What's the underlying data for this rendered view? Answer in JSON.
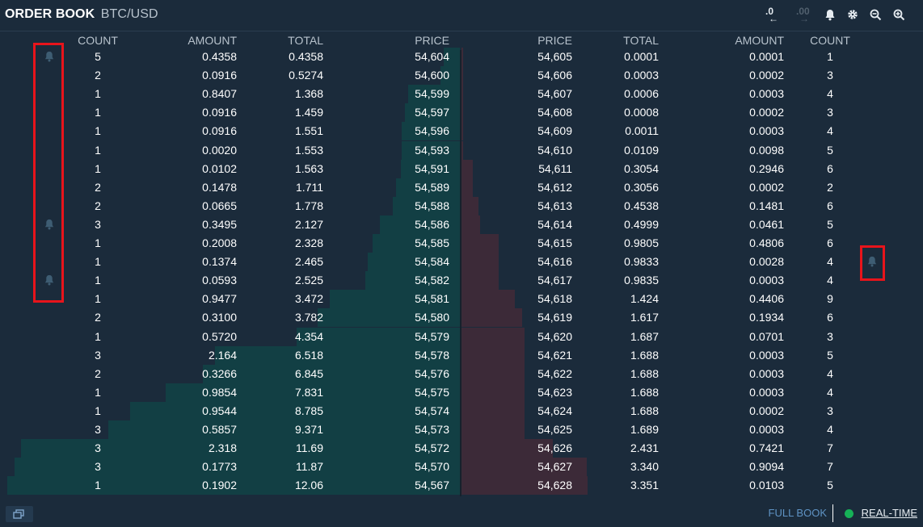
{
  "header": {
    "title": "ORDER BOOK",
    "pair": "BTC/USD",
    "precision_less": ".0",
    "precision_more": ".00"
  },
  "columns": {
    "bids": [
      "COUNT",
      "AMOUNT",
      "TOTAL",
      "PRICE"
    ],
    "asks": [
      "PRICE",
      "TOTAL",
      "AMOUNT",
      "COUNT"
    ]
  },
  "bids": [
    {
      "count": "5",
      "amount": "0.4358",
      "total": "0.4358",
      "price": "54,604",
      "alert": true
    },
    {
      "count": "2",
      "amount": "0.0916",
      "total": "0.5274",
      "price": "54,600",
      "alert": false
    },
    {
      "count": "1",
      "amount": "0.8407",
      "total": "1.368",
      "price": "54,599",
      "alert": false
    },
    {
      "count": "1",
      "amount": "0.0916",
      "total": "1.459",
      "price": "54,597",
      "alert": false
    },
    {
      "count": "1",
      "amount": "0.0916",
      "total": "1.551",
      "price": "54,596",
      "alert": false
    },
    {
      "count": "1",
      "amount": "0.0020",
      "total": "1.553",
      "price": "54,593",
      "alert": false
    },
    {
      "count": "1",
      "amount": "0.0102",
      "total": "1.563",
      "price": "54,591",
      "alert": false
    },
    {
      "count": "2",
      "amount": "0.1478",
      "total": "1.711",
      "price": "54,589",
      "alert": false
    },
    {
      "count": "2",
      "amount": "0.0665",
      "total": "1.778",
      "price": "54,588",
      "alert": false
    },
    {
      "count": "3",
      "amount": "0.3495",
      "total": "2.127",
      "price": "54,586",
      "alert": true
    },
    {
      "count": "1",
      "amount": "0.2008",
      "total": "2.328",
      "price": "54,585",
      "alert": false
    },
    {
      "count": "1",
      "amount": "0.1374",
      "total": "2.465",
      "price": "54,584",
      "alert": false
    },
    {
      "count": "1",
      "amount": "0.0593",
      "total": "2.525",
      "price": "54,582",
      "alert": true
    },
    {
      "count": "1",
      "amount": "0.9477",
      "total": "3.472",
      "price": "54,581",
      "alert": false
    },
    {
      "count": "2",
      "amount": "0.3100",
      "total": "3.782",
      "price": "54,580",
      "alert": false
    },
    {
      "count": "1",
      "amount": "0.5720",
      "total": "4.354",
      "price": "54,579",
      "alert": false
    },
    {
      "count": "3",
      "amount": "2.164",
      "total": "6.518",
      "price": "54,578",
      "alert": false
    },
    {
      "count": "2",
      "amount": "0.3266",
      "total": "6.845",
      "price": "54,576",
      "alert": false
    },
    {
      "count": "1",
      "amount": "0.9854",
      "total": "7.831",
      "price": "54,575",
      "alert": false
    },
    {
      "count": "1",
      "amount": "0.9544",
      "total": "8.785",
      "price": "54,574",
      "alert": false
    },
    {
      "count": "3",
      "amount": "0.5857",
      "total": "9.371",
      "price": "54,573",
      "alert": false
    },
    {
      "count": "3",
      "amount": "2.318",
      "total": "11.69",
      "price": "54,572",
      "alert": false
    },
    {
      "count": "3",
      "amount": "0.1773",
      "total": "11.87",
      "price": "54,570",
      "alert": false
    },
    {
      "count": "1",
      "amount": "0.1902",
      "total": "12.06",
      "price": "54,567",
      "alert": false
    }
  ],
  "asks": [
    {
      "price": "54,605",
      "total": "0.0001",
      "amount": "0.0001",
      "count": "1",
      "alert": false
    },
    {
      "price": "54,606",
      "total": "0.0003",
      "amount": "0.0002",
      "count": "3",
      "alert": false
    },
    {
      "price": "54,607",
      "total": "0.0006",
      "amount": "0.0003",
      "count": "4",
      "alert": false
    },
    {
      "price": "54,608",
      "total": "0.0008",
      "amount": "0.0002",
      "count": "3",
      "alert": false
    },
    {
      "price": "54,609",
      "total": "0.0011",
      "amount": "0.0003",
      "count": "4",
      "alert": false
    },
    {
      "price": "54,610",
      "total": "0.0109",
      "amount": "0.0098",
      "count": "5",
      "alert": false
    },
    {
      "price": "54,611",
      "total": "0.3054",
      "amount": "0.2946",
      "count": "6",
      "alert": false
    },
    {
      "price": "54,612",
      "total": "0.3056",
      "amount": "0.0002",
      "count": "2",
      "alert": false
    },
    {
      "price": "54,613",
      "total": "0.4538",
      "amount": "0.1481",
      "count": "6",
      "alert": false
    },
    {
      "price": "54,614",
      "total": "0.4999",
      "amount": "0.0461",
      "count": "5",
      "alert": false
    },
    {
      "price": "54,615",
      "total": "0.9805",
      "amount": "0.4806",
      "count": "6",
      "alert": false
    },
    {
      "price": "54,616",
      "total": "0.9833",
      "amount": "0.0028",
      "count": "4",
      "alert": true
    },
    {
      "price": "54,617",
      "total": "0.9835",
      "amount": "0.0003",
      "count": "4",
      "alert": false
    },
    {
      "price": "54,618",
      "total": "1.424",
      "amount": "0.4406",
      "count": "9",
      "alert": false
    },
    {
      "price": "54,619",
      "total": "1.617",
      "amount": "0.1934",
      "count": "6",
      "alert": false
    },
    {
      "price": "54,620",
      "total": "1.687",
      "amount": "0.0701",
      "count": "3",
      "alert": false
    },
    {
      "price": "54,621",
      "total": "1.688",
      "amount": "0.0003",
      "count": "5",
      "alert": false
    },
    {
      "price": "54,622",
      "total": "1.688",
      "amount": "0.0003",
      "count": "4",
      "alert": false
    },
    {
      "price": "54,623",
      "total": "1.688",
      "amount": "0.0003",
      "count": "4",
      "alert": false
    },
    {
      "price": "54,624",
      "total": "1.688",
      "amount": "0.0002",
      "count": "3",
      "alert": false
    },
    {
      "price": "54,625",
      "total": "1.689",
      "amount": "0.0003",
      "count": "4",
      "alert": false
    },
    {
      "price": "54,626",
      "total": "2.431",
      "amount": "0.7421",
      "count": "7",
      "alert": false
    },
    {
      "price": "54,627",
      "total": "3.340",
      "amount": "0.9094",
      "count": "7",
      "alert": false
    },
    {
      "price": "54,628",
      "total": "3.351",
      "amount": "0.0103",
      "count": "5",
      "alert": false
    }
  ],
  "footer": {
    "full_book": "FULL BOOK",
    "realtime": "REAL-TIME"
  },
  "colors": {
    "bg": "#1b2b3b",
    "bid_bar": "#123f44",
    "ask_bar": "#3c2a38",
    "highlight": "#e8141b",
    "live_dot": "#16b157"
  }
}
